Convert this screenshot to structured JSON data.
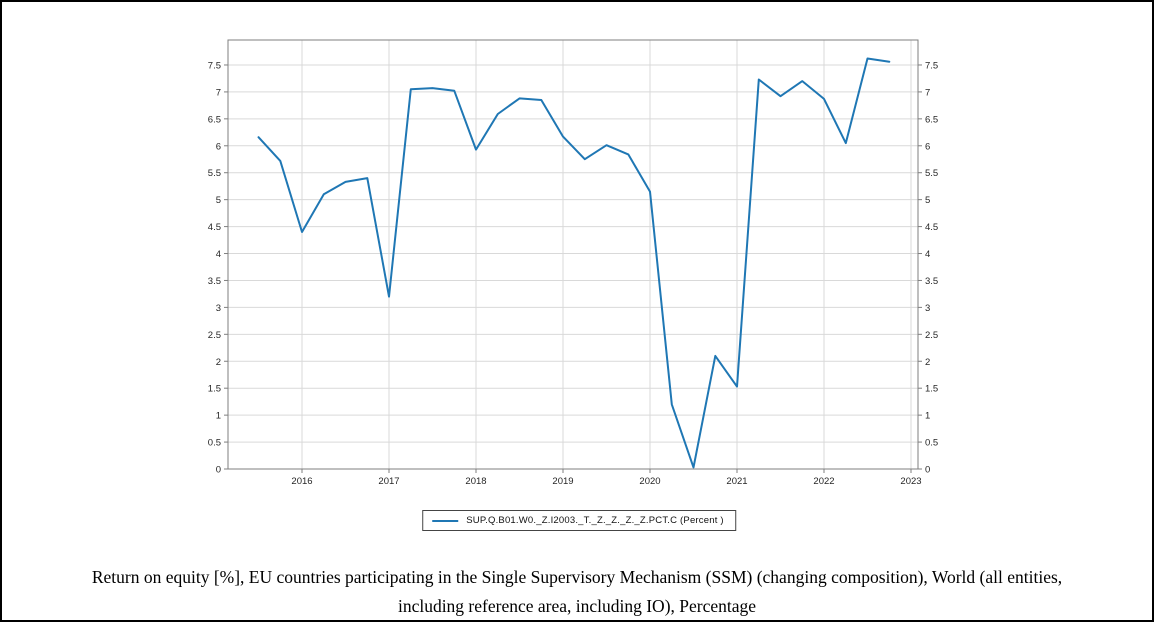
{
  "chart_data": {
    "type": "line",
    "title": "",
    "xlabel": "",
    "ylabel": "",
    "legend_label": "SUP.Q.B01.W0._Z.I2003._T._Z._Z._Z._Z.PCT.C (Percent )",
    "legend_position": "bottom-center",
    "grid": true,
    "line_color": "#1f77b4",
    "grid_color": "#d9d9d9",
    "frame_color": "#7f7f7f",
    "tick_label_color": "#262626",
    "xlim": [
      2015.15,
      2023.08
    ],
    "ylim": [
      0,
      7.96
    ],
    "x_ticks": [
      2016,
      2017,
      2018,
      2019,
      2020,
      2021,
      2022,
      2023
    ],
    "y_ticks": [
      0,
      0.5,
      1,
      1.5,
      2,
      2.5,
      3,
      3.5,
      4,
      4.5,
      5,
      5.5,
      6,
      6.5,
      7,
      7.5
    ],
    "series": [
      {
        "name": "SUP.Q.B01.W0._Z.I2003._T._Z._Z._Z._Z.PCT.C (Percent )",
        "x": [
          2015.5,
          2015.75,
          2016.0,
          2016.25,
          2016.5,
          2016.75,
          2017.0,
          2017.25,
          2017.5,
          2017.75,
          2018.0,
          2018.25,
          2018.5,
          2018.75,
          2019.0,
          2019.25,
          2019.5,
          2019.75,
          2020.0,
          2020.25,
          2020.5,
          2020.75,
          2021.0,
          2021.25,
          2021.5,
          2021.75,
          2022.0,
          2022.25,
          2022.5,
          2022.75
        ],
        "values": [
          6.16,
          5.72,
          4.4,
          5.1,
          5.33,
          5.4,
          3.2,
          7.05,
          7.07,
          7.02,
          5.93,
          6.59,
          6.88,
          6.85,
          6.17,
          5.75,
          6.01,
          5.84,
          5.15,
          1.2,
          0.03,
          2.1,
          1.53,
          7.23,
          6.92,
          7.2,
          6.87,
          6.05,
          7.62,
          7.56
        ]
      }
    ]
  },
  "caption": {
    "lines": [
      "Return on equity [%], EU countries participating in the Single Supervisory Mechanism (SSM) (changing composition), World (all entities,",
      "including reference area, including IO), Percentage"
    ]
  }
}
